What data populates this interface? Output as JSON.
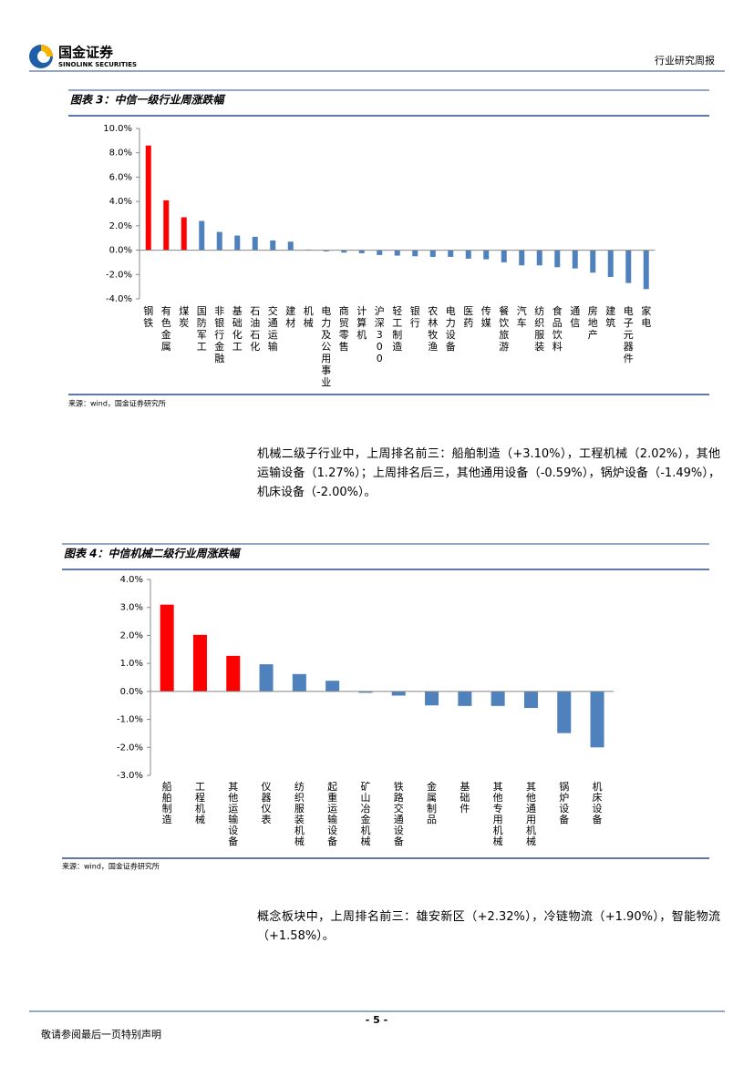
{
  "header": {
    "company": "国金证券",
    "company_en": "SINOLINK SECURITIES",
    "report_type": "行业研究周报"
  },
  "chart_data": [
    {
      "type": "bar",
      "title": "图表 3：中信一级行业周涨跌幅",
      "categories": [
        "钢铁",
        "有色金属",
        "煤炭",
        "国防军工",
        "非银行金融",
        "基础化工",
        "石油石化",
        "交通运输",
        "建材",
        "机械",
        "电力及公用事业",
        "商贸零售",
        "计算机",
        "沪深300",
        "轻工制造",
        "银行",
        "农林牧渔",
        "电力设备",
        "医药",
        "传媒",
        "餐饮旅游",
        "汽车",
        "纺织服装",
        "食品饮料",
        "通信",
        "房地产",
        "建筑",
        "电子元器件",
        "家电"
      ],
      "values": [
        8.6,
        4.1,
        2.7,
        2.4,
        1.5,
        1.2,
        1.1,
        0.8,
        0.7,
        0.05,
        -0.1,
        -0.2,
        -0.25,
        -0.4,
        -0.45,
        -0.5,
        -0.55,
        -0.55,
        -0.7,
        -0.75,
        -1.0,
        -1.25,
        -1.25,
        -1.4,
        -1.5,
        -1.85,
        -2.2,
        -2.7,
        -3.2
      ],
      "colors": [
        "#ff0000",
        "#ff0000",
        "#ff0000",
        "#4f81bd",
        "#4f81bd",
        "#4f81bd",
        "#4f81bd",
        "#4f81bd",
        "#4f81bd",
        "#4f81bd",
        "#4f81bd",
        "#4f81bd",
        "#4f81bd",
        "#4f81bd",
        "#4f81bd",
        "#4f81bd",
        "#4f81bd",
        "#4f81bd",
        "#4f81bd",
        "#4f81bd",
        "#4f81bd",
        "#4f81bd",
        "#4f81bd",
        "#4f81bd",
        "#4f81bd",
        "#4f81bd",
        "#4f81bd",
        "#4f81bd",
        "#4f81bd"
      ],
      "ylim": [
        -4,
        10
      ],
      "yticks": [
        {
          "value": -4,
          "label": "-4.0%"
        },
        {
          "value": -2,
          "label": "-2.0%"
        },
        {
          "value": 0,
          "label": "0.0%"
        },
        {
          "value": 2,
          "label": "2.0%"
        },
        {
          "value": 4,
          "label": "4.0%"
        },
        {
          "value": 6,
          "label": "6.0%"
        },
        {
          "value": 8,
          "label": "8.0%"
        },
        {
          "value": 10,
          "label": "10.0%"
        }
      ],
      "source": "来源：wind，国金证券研究所"
    },
    {
      "type": "bar",
      "title": "图表 4：中信机械二级行业周涨跌幅",
      "categories": [
        "船舶制造",
        "工程机械",
        "其他运输设备",
        "仪器仪表",
        "纺织服装机械",
        "起重运输设备",
        "矿山冶金机械",
        "铁路交通设备",
        "金属制品",
        "基础件",
        "其他专用机械",
        "其他通用机械",
        "锅炉设备",
        "机床设备"
      ],
      "values": [
        3.1,
        2.02,
        1.27,
        0.97,
        0.62,
        0.38,
        -0.05,
        -0.15,
        -0.5,
        -0.52,
        -0.52,
        -0.59,
        -1.49,
        -2.0
      ],
      "colors": [
        "#ff0000",
        "#ff0000",
        "#ff0000",
        "#4f81bd",
        "#4f81bd",
        "#4f81bd",
        "#4f81bd",
        "#4f81bd",
        "#4f81bd",
        "#4f81bd",
        "#4f81bd",
        "#4f81bd",
        "#4f81bd",
        "#4f81bd"
      ],
      "ylim": [
        -3,
        4
      ],
      "yticks": [
        {
          "value": -3,
          "label": "-3.0%"
        },
        {
          "value": -2,
          "label": "-2.0%"
        },
        {
          "value": -1,
          "label": "-1.0%"
        },
        {
          "value": 0,
          "label": "0.0%"
        },
        {
          "value": 1,
          "label": "1.0%"
        },
        {
          "value": 2,
          "label": "2.0%"
        },
        {
          "value": 3,
          "label": "3.0%"
        },
        {
          "value": 4,
          "label": "4.0%"
        }
      ],
      "source": "来源：wind，国金证券研究所"
    }
  ],
  "paragraphs": [
    "机械二级子行业中，上周排名前三：船舶制造（+3.10%），工程机械（2.02%），其他运输设备（1.27%）；上周排名后三，其他通用设备（-0.59%），锅炉设备（-1.49%），机床设备（-2.00%）。",
    "概念板块中，上周排名前三：雄安新区（+2.32%），冷链物流（+1.90%），智能物流（+1.58%）。"
  ],
  "footer": {
    "page": "- 5 -",
    "disclaimer": "敬请参阅最后一页特别声明"
  }
}
